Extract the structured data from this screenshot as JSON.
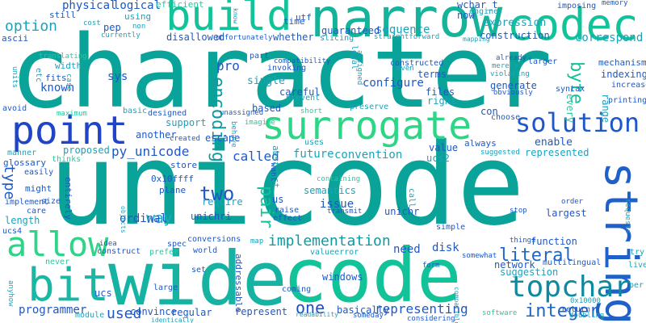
{
  "words": [
    {
      "text": "character",
      "color": "#0aa39a"
    },
    {
      "text": "unicode",
      "color": "#0aa39a"
    },
    {
      "text": "wide",
      "color": "#16b3a2"
    },
    {
      "text": "code",
      "color": "#12c39a"
    },
    {
      "text": "narrow",
      "color": "#14b49b"
    },
    {
      "text": "build",
      "color": "#12c39a"
    },
    {
      "text": "codec",
      "color": "#12c39a"
    },
    {
      "text": "point",
      "color": "#1f44c7"
    },
    {
      "text": "surrogate",
      "color": "#2dd687"
    },
    {
      "text": "string",
      "color": "#1f61c9"
    },
    {
      "text": "bit",
      "color": "#19b8a5"
    },
    {
      "text": "allow",
      "color": "#2ed487"
    },
    {
      "text": "topchar",
      "color": "#0d8aa0"
    },
    {
      "text": "solution",
      "color": "#1e58c8"
    },
    {
      "text": "implementation",
      "color": "#0f9aa0"
    },
    {
      "text": "integer",
      "color": "#1d64c6"
    },
    {
      "text": "two",
      "color": "#1e58c8"
    },
    {
      "text": "encoding",
      "color": "#0f9aa0"
    },
    {
      "text": "literal",
      "color": "#1c68c7"
    },
    {
      "text": "pair",
      "color": "#12c39a"
    },
    {
      "text": "byte",
      "color": "#12c39a"
    },
    {
      "text": "one",
      "color": "#1f4ec7"
    },
    {
      "text": "used",
      "color": "#1d58c8"
    },
    {
      "text": "type",
      "color": "#1d58c8"
    },
    {
      "text": "way",
      "color": "#1fa8c2"
    },
    {
      "text": "option",
      "color": "#1ca2bc"
    },
    {
      "text": "physical",
      "color": "#1a57c5"
    },
    {
      "text": "logical",
      "color": "#1a57c5"
    },
    {
      "text": "efficient",
      "color": "#2bc7a0"
    },
    {
      "text": "using",
      "color": "#1ca2bc"
    },
    {
      "text": "pep",
      "color": "#1a5ac6"
    },
    {
      "text": "utf",
      "color": "#1a5ac6"
    },
    {
      "text": "still",
      "color": "#1a5ac6"
    },
    {
      "text": "time",
      "color": "#1e58c8"
    },
    {
      "text": "wchar_t",
      "color": "#1e58c8"
    },
    {
      "text": "engine",
      "color": "#1ca2bc"
    },
    {
      "text": "now",
      "color": "#1e58c8"
    },
    {
      "text": "expression",
      "color": "#1ca2bc"
    },
    {
      "text": "construction",
      "color": "#1e58c8"
    },
    {
      "text": "correspond",
      "color": "#1ca2bc"
    },
    {
      "text": "sequence",
      "color": "#1ca2bc"
    },
    {
      "text": "guaranteed",
      "color": "#1e58c8"
    },
    {
      "text": "disallowed",
      "color": "#1e58c8"
    },
    {
      "text": "ascii",
      "color": "#1e58c8"
    },
    {
      "text": "pro",
      "color": "#1e58c8"
    },
    {
      "text": "sys",
      "color": "#1e58c8"
    },
    {
      "text": "width",
      "color": "#1ca2bc"
    },
    {
      "text": "fits",
      "color": "#1e58c8"
    },
    {
      "text": "known",
      "color": "#1e58c8"
    },
    {
      "text": "single",
      "color": "#1ca2bc"
    },
    {
      "text": "configure",
      "color": "#1e58c8"
    },
    {
      "text": "terms",
      "color": "#1e58c8"
    },
    {
      "text": "files",
      "color": "#1e58c8"
    },
    {
      "text": "right",
      "color": "#1ca2bc"
    },
    {
      "text": "generate",
      "color": "#1e58c8"
    },
    {
      "text": "indexing",
      "color": "#1e58c8"
    },
    {
      "text": "mechanism",
      "color": "#1e58c8"
    },
    {
      "text": "careful",
      "color": "#1e58c8"
    },
    {
      "text": "based",
      "color": "#1e58c8"
    },
    {
      "text": "support",
      "color": "#1ca2bc"
    },
    {
      "text": "escape",
      "color": "#1e58c8"
    },
    {
      "text": "always",
      "color": "#1e58c8"
    },
    {
      "text": "enable",
      "color": "#1e58c8"
    },
    {
      "text": "represented",
      "color": "#1ca2bc"
    },
    {
      "text": "py_unicode",
      "color": "#1e58c8"
    },
    {
      "text": "proposed",
      "color": "#1ca2bc"
    },
    {
      "text": "another",
      "color": "#1e58c8"
    },
    {
      "text": "called",
      "color": "#1e58c8"
    },
    {
      "text": "future",
      "color": "#1ca2bc"
    },
    {
      "text": "convention",
      "color": "#1ca2bc"
    },
    {
      "text": "value",
      "color": "#1e58c8"
    },
    {
      "text": "ucs2",
      "color": "#1ca2bc"
    },
    {
      "text": "issue",
      "color": "#1e58c8"
    },
    {
      "text": "us",
      "color": "#1e58c8"
    },
    {
      "text": "require",
      "color": "#1ca2bc"
    },
    {
      "text": "unichr",
      "color": "#1e58c8"
    },
    {
      "text": "unichri",
      "color": "#1e58c8"
    },
    {
      "text": "ordinal",
      "color": "#1e58c8"
    },
    {
      "text": "length",
      "color": "#1ca2bc"
    },
    {
      "text": "ucs4",
      "color": "#1e58c8"
    },
    {
      "text": "need",
      "color": "#1e58c8"
    },
    {
      "text": "disk",
      "color": "#1e58c8"
    },
    {
      "text": "suggestion",
      "color": "#1ca2bc"
    },
    {
      "text": "largest",
      "color": "#1e58c8"
    },
    {
      "text": "function",
      "color": "#1e58c8"
    },
    {
      "text": "network",
      "color": "#1e58c8"
    },
    {
      "text": "multilingual",
      "color": "#1e58c8"
    },
    {
      "text": "windows",
      "color": "#1e58c8"
    },
    {
      "text": "representing",
      "color": "#1e58c8"
    },
    {
      "text": "basically",
      "color": "#1e58c8"
    },
    {
      "text": "represent",
      "color": "#1e58c8"
    },
    {
      "text": "regular",
      "color": "#1e58c8"
    },
    {
      "text": "programmer",
      "color": "#1e58c8"
    },
    {
      "text": "convince",
      "color": "#1e58c8"
    },
    {
      "text": "return",
      "color": "#1e58c8"
    },
    {
      "text": "coming",
      "color": "#1e58c8"
    },
    {
      "text": "addressable",
      "color": "#1e58c8"
    },
    {
      "text": "considering",
      "color": "#1e58c8"
    },
    {
      "text": "someday",
      "color": "#1e58c8"
    },
    {
      "text": "readability",
      "color": "#1ca2bc"
    },
    {
      "text": "software",
      "color": "#2bc7a0"
    },
    {
      "text": "doubling",
      "color": "#1ca2bc"
    },
    {
      "text": "module",
      "color": "#1ca2bc"
    },
    {
      "text": "identically",
      "color": "#1ca2bc"
    },
    {
      "text": "ucs",
      "color": "#1e58c8"
    },
    {
      "text": "large",
      "color": "#1e58c8"
    },
    {
      "text": "set",
      "color": "#1e58c8"
    },
    {
      "text": "anyhow",
      "color": "#1ca2bc"
    },
    {
      "text": "never",
      "color": "#2bc7a0"
    },
    {
      "text": "prefer",
      "color": "#2bc7a0"
    },
    {
      "text": "world",
      "color": "#1e58c8"
    },
    {
      "text": "spec",
      "color": "#1e58c8"
    },
    {
      "text": "conversions",
      "color": "#1e58c8"
    },
    {
      "text": "construct",
      "color": "#1e58c8"
    },
    {
      "text": "effect",
      "color": "#1e58c8"
    },
    {
      "text": "raise",
      "color": "#1e58c8"
    },
    {
      "text": "valueerror",
      "color": "#1ca2bc"
    },
    {
      "text": "plane",
      "color": "#1e58c8"
    },
    {
      "text": "semantics",
      "color": "#1ca2bc"
    },
    {
      "text": "0x10ffff",
      "color": "#1e58c8"
    },
    {
      "text": "store",
      "color": "#1e58c8"
    },
    {
      "text": "idea",
      "color": "#1e58c8"
    },
    {
      "text": "objects",
      "color": "#1ca2bc"
    },
    {
      "text": "implement",
      "color": "#1e58c8"
    },
    {
      "text": "care",
      "color": "#1e58c8"
    },
    {
      "text": "might",
      "color": "#1e58c8"
    },
    {
      "text": "size",
      "color": "#1e58c8"
    },
    {
      "text": "easily",
      "color": "#1e58c8"
    },
    {
      "text": "glossary",
      "color": "#1e58c8"
    },
    {
      "text": "entirely",
      "color": "#1e58c8"
    },
    {
      "text": "manner",
      "color": "#1ca2bc"
    },
    {
      "text": "thinks",
      "color": "#2bc7a0"
    },
    {
      "text": "created",
      "color": "#1e58c8"
    },
    {
      "text": "abstract",
      "color": "#1ca2bc"
    },
    {
      "text": "uses",
      "color": "#1ca2bc"
    },
    {
      "text": "want",
      "color": "#1e58c8"
    },
    {
      "text": "containing",
      "color": "#2bc7a0"
    },
    {
      "text": "transmit",
      "color": "#1e58c8"
    },
    {
      "text": "call",
      "color": "#1ca2bc"
    },
    {
      "text": "suggested",
      "color": "#1ca2bc"
    },
    {
      "text": "simple",
      "color": "#1e58c8"
    },
    {
      "text": "stop",
      "color": "#1e58c8"
    },
    {
      "text": "order",
      "color": "#1e58c8"
    },
    {
      "text": "things",
      "color": "#1e58c8"
    },
    {
      "text": "somewhat",
      "color": "#1e58c8"
    },
    {
      "text": "map",
      "color": "#1ca2bc"
    },
    {
      "text": "form",
      "color": "#1e58c8"
    },
    {
      "text": "compatible",
      "color": "#1ca2bc"
    },
    {
      "text": "try",
      "color": "#1ca2bc"
    },
    {
      "text": "live",
      "color": "#1ca2bc"
    },
    {
      "text": "per",
      "color": "#1ca2bc"
    },
    {
      "text": "0x10000",
      "color": "#1ca2bc"
    },
    {
      "text": "requests",
      "color": "#1ca2bc"
    },
    {
      "text": "printing",
      "color": "#1e58c8"
    },
    {
      "text": "increase",
      "color": "#1e58c8"
    },
    {
      "text": "syntax",
      "color": "#1e58c8"
    },
    {
      "text": "range",
      "color": "#1ca2bc"
    },
    {
      "text": "every",
      "color": "#2bc7a0"
    },
    {
      "text": "con",
      "color": "#1e58c8"
    },
    {
      "text": "choose",
      "color": "#1e58c8"
    },
    {
      "text": "preserve",
      "color": "#1ca2bc"
    },
    {
      "text": "obviously",
      "color": "#1e58c8"
    },
    {
      "text": "violating",
      "color": "#1ca2bc"
    },
    {
      "text": "merely",
      "color": "#1ca2bc"
    },
    {
      "text": "already",
      "color": "#1e58c8"
    },
    {
      "text": "larger",
      "color": "#1e58c8"
    },
    {
      "text": "constructed",
      "color": "#1e58c8"
    },
    {
      "text": "even",
      "color": "#1ca2bc"
    },
    {
      "text": "assigned",
      "color": "#1ca2bc"
    },
    {
      "text": "legal",
      "color": "#1ca2bc"
    },
    {
      "text": "mapping",
      "color": "#1ca2bc"
    },
    {
      "text": "straightforward",
      "color": "#1ca2bc"
    },
    {
      "text": "slicing",
      "color": "#1ca2bc"
    },
    {
      "text": "whether",
      "color": "#1e58c8"
    },
    {
      "text": "unfortunately",
      "color": "#1e58c8"
    },
    {
      "text": "compatibility",
      "color": "#1e58c8"
    },
    {
      "text": "invoking",
      "color": "#1e58c8"
    },
    {
      "text": "prevent",
      "color": "#1ca2bc"
    },
    {
      "text": "short",
      "color": "#2bc7a0"
    },
    {
      "text": "unassigned",
      "color": "#1e58c8"
    },
    {
      "text": "imagine",
      "color": "#2bc7a0"
    },
    {
      "text": "behave",
      "color": "#1ca2bc"
    },
    {
      "text": "designed",
      "color": "#1e58c8"
    },
    {
      "text": "basic",
      "color": "#1ca2bc"
    },
    {
      "text": "maximum",
      "color": "#2bc7a0"
    },
    {
      "text": "avoid",
      "color": "#1e58c8"
    },
    {
      "text": "translating",
      "color": "#2bc7a0"
    },
    {
      "text": "etc",
      "color": "#1ca2bc"
    },
    {
      "text": "units",
      "color": "#1ca2bc"
    },
    {
      "text": "case",
      "color": "#1ca2bc"
    },
    {
      "text": "currently",
      "color": "#1ca2bc"
    },
    {
      "text": "cost",
      "color": "#1ca2bc"
    },
    {
      "text": "non",
      "color": "#1ca2bc"
    },
    {
      "text": "know",
      "color": "#1ca2bc"
    },
    {
      "text": "imposing",
      "color": "#1e58c8"
    },
    {
      "text": "memory",
      "color": "#1e58c8"
    },
    {
      "text": "part",
      "color": "#1e58c8"
    }
  ]
}
